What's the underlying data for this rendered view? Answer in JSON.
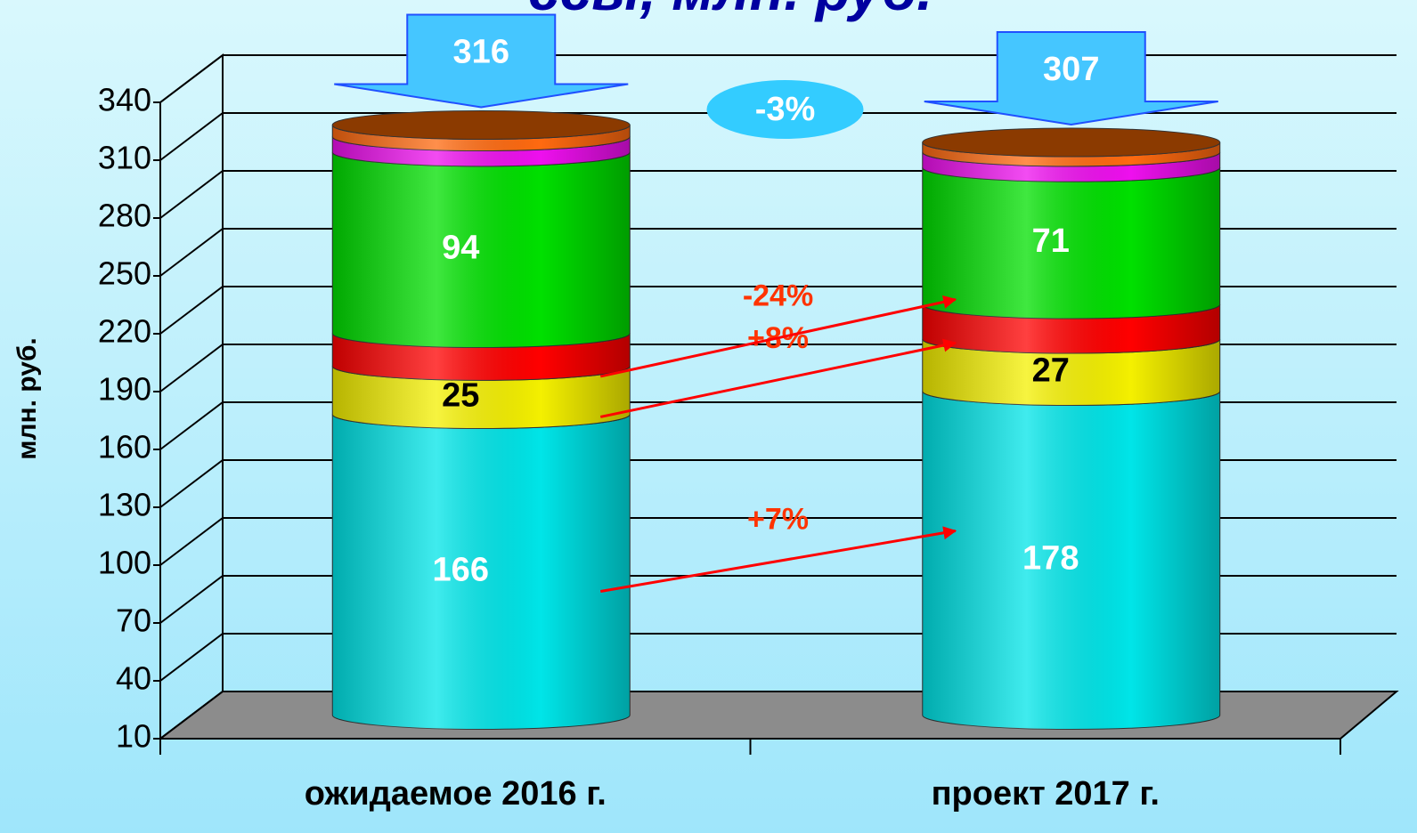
{
  "chart_data": {
    "type": "cylinder_stacked",
    "title": "ссы, млн. руб.",
    "y_label": "млн. руб.",
    "categories": [
      "ожидаемое 2016 г.",
      "проект 2017 г."
    ],
    "series": [
      {
        "color": "#00e5e8",
        "values": [
          166,
          178
        ],
        "label_color": "#ffffff",
        "labels": true
      },
      {
        "color": "#f4f000",
        "values": [
          25,
          27
        ],
        "label_color": "#000000",
        "labels": true
      },
      {
        "color": "#ff0000",
        "values": [
          17,
          18
        ],
        "labels": false
      },
      {
        "color": "#00e000",
        "values": [
          94,
          71
        ],
        "label_color": "#ffffff",
        "labels": true
      },
      {
        "color": "#ee10ee",
        "values": [
          8,
          8
        ],
        "labels": false
      },
      {
        "color": "#ff6a10",
        "values": [
          6,
          5
        ],
        "labels": false
      }
    ],
    "top_color": "#8b3a00",
    "totals": [
      316,
      307
    ],
    "total_change": "-3%",
    "change_labels": [
      "+7%",
      "+8%",
      "-24%"
    ],
    "ylim": [
      10,
      340
    ],
    "yticks": [
      10,
      40,
      70,
      100,
      130,
      160,
      190,
      220,
      250,
      280,
      310,
      340
    ],
    "grid": true
  }
}
